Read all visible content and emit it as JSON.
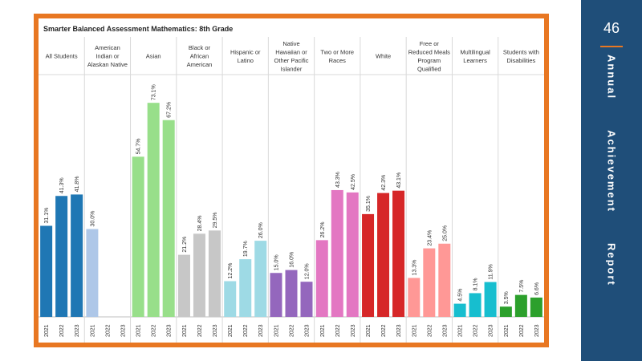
{
  "sidebar": {
    "page_number": "46",
    "title_words": [
      "Annual",
      "Achievement",
      "Report"
    ],
    "background": "#1f4e79",
    "accent": "#e87722"
  },
  "frame_color": "#e87722",
  "chart_data": {
    "type": "bar",
    "title": "Smarter Balanced Assessment Mathematics: 8th Grade",
    "x_tick_labels": [
      "2021",
      "2022",
      "2023"
    ],
    "groups": [
      {
        "name": "All Students",
        "color": "#1f77b4",
        "values": [
          31.1,
          41.3,
          41.8
        ],
        "labels": [
          "31.1%",
          "41.3%",
          "41.8%"
        ]
      },
      {
        "name": "American Indian or Alaskan Native",
        "color": "#aec7e8",
        "values": [
          30.0,
          null,
          null
        ],
        "labels": [
          "30.0%",
          "",
          ""
        ]
      },
      {
        "name": "Asian",
        "color": "#98df8a",
        "values": [
          54.7,
          73.1,
          67.2
        ],
        "labels": [
          "54.7%",
          "73.1%",
          "67.2%"
        ]
      },
      {
        "name": "Black or African American",
        "color": "#c7c7c7",
        "values": [
          21.2,
          28.4,
          29.5
        ],
        "labels": [
          "21.2%",
          "28.4%",
          "29.5%"
        ]
      },
      {
        "name": "Hispanic or Latino",
        "color": "#9edae5",
        "values": [
          12.2,
          19.7,
          26.0
        ],
        "labels": [
          "12.2%",
          "19.7%",
          "26.0%"
        ]
      },
      {
        "name": "Native Hawaiian or Other Pacific Islander",
        "color": "#9467bd",
        "values": [
          15.0,
          16.0,
          12.0
        ],
        "labels": [
          "15.0%",
          "16.0%",
          "12.0%"
        ]
      },
      {
        "name": "Two or More Races",
        "color": "#e377c2",
        "values": [
          26.2,
          43.3,
          42.5
        ],
        "labels": [
          "26.2%",
          "43.3%",
          "42.5%"
        ]
      },
      {
        "name": "White",
        "color": "#d62728",
        "values": [
          35.1,
          42.3,
          43.1
        ],
        "labels": [
          "35.1%",
          "42.3%",
          "43.1%"
        ]
      },
      {
        "name": "Free or Reduced Meals Program Qualified",
        "color": "#ff9896",
        "values": [
          13.3,
          23.4,
          25.0
        ],
        "labels": [
          "13.3%",
          "23.4%",
          "25.0%"
        ]
      },
      {
        "name": "Multilingual Learners",
        "color": "#17becf",
        "values": [
          4.5,
          8.1,
          11.9
        ],
        "labels": [
          "4.5%",
          "8.1%",
          "11.9%"
        ]
      },
      {
        "name": "Students with Disabilities",
        "color": "#2ca02c",
        "values": [
          3.5,
          7.5,
          6.6
        ],
        "labels": [
          "3.5%",
          "7.5%",
          "6.6%"
        ]
      }
    ],
    "ylim": [
      0,
      80
    ],
    "grid": false,
    "legend": "none"
  }
}
